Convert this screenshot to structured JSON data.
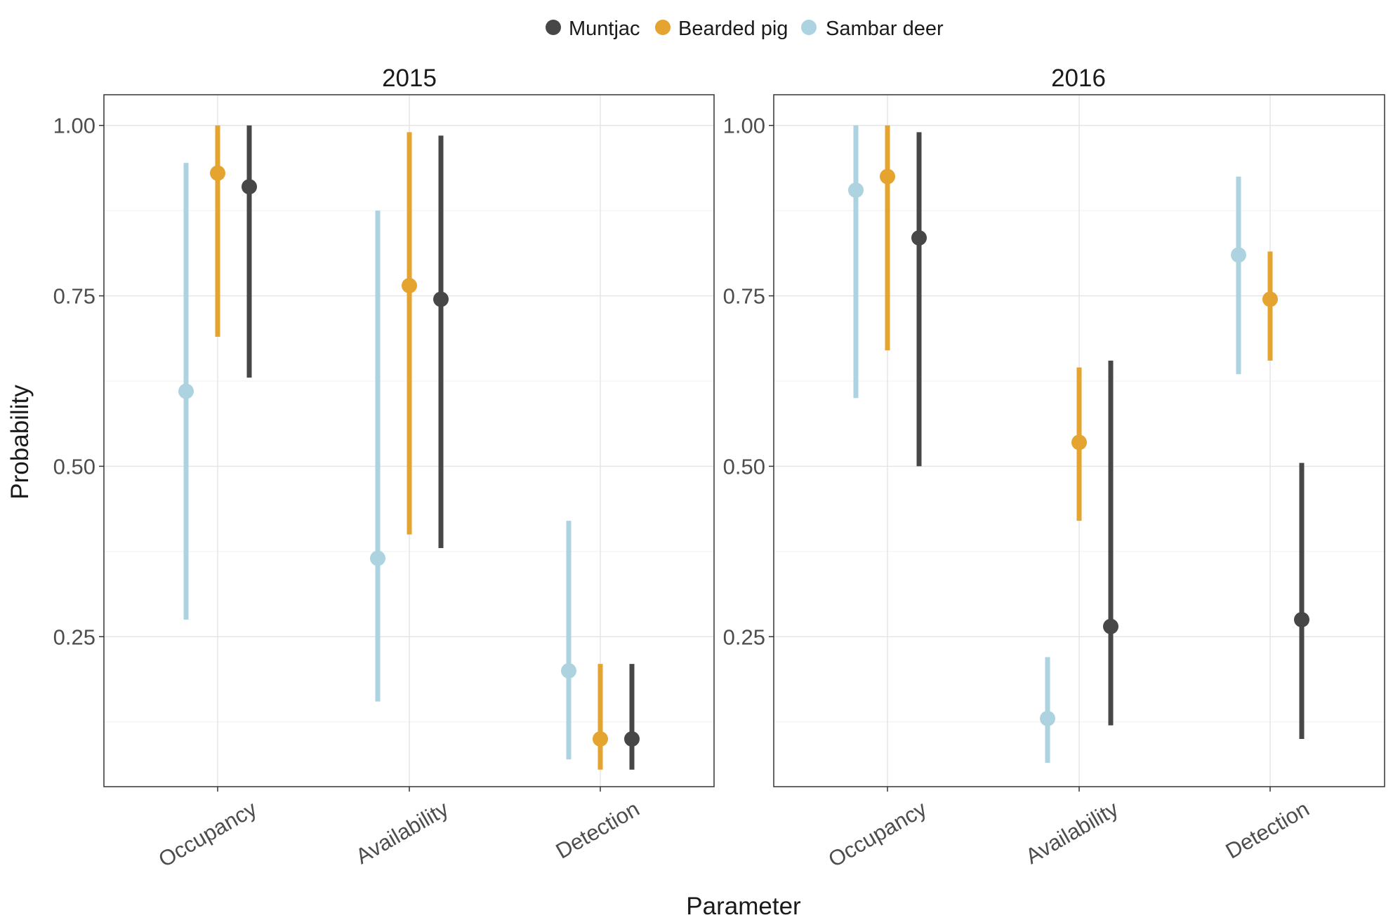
{
  "colors": {
    "Muntjac": "#474747",
    "Bearded pig": "#E5A330",
    "Sambar deer": "#ADD3E1"
  },
  "legend": {
    "position": "top",
    "items": [
      "Muntjac",
      "Bearded pig",
      "Sambar deer"
    ]
  },
  "axis": {
    "xlabel": "Parameter",
    "ylabel": "Probability"
  },
  "chart_data": [
    {
      "type": "pointrange",
      "title": "2015",
      "categories": [
        "Occupancy",
        "Availability",
        "Detection"
      ],
      "ylim": [
        0.03,
        1.045
      ],
      "yticks": [
        0.25,
        0.5,
        0.75,
        1.0
      ],
      "ytick_labels": [
        "0.25",
        "0.50",
        "0.75",
        "1.00"
      ],
      "series": [
        {
          "name": "Sambar deer",
          "points": [
            {
              "category": "Occupancy",
              "mid": 0.61,
              "low": 0.275,
              "high": 0.945
            },
            {
              "category": "Availability",
              "mid": 0.365,
              "low": 0.155,
              "high": 0.875
            },
            {
              "category": "Detection",
              "mid": 0.2,
              "low": 0.07,
              "high": 0.42
            }
          ]
        },
        {
          "name": "Bearded pig",
          "points": [
            {
              "category": "Occupancy",
              "mid": 0.93,
              "low": 0.69,
              "high": 1.0
            },
            {
              "category": "Availability",
              "mid": 0.765,
              "low": 0.4,
              "high": 0.99
            },
            {
              "category": "Detection",
              "mid": 0.1,
              "low": 0.055,
              "high": 0.21
            }
          ]
        },
        {
          "name": "Muntjac",
          "points": [
            {
              "category": "Occupancy",
              "mid": 0.91,
              "low": 0.63,
              "high": 1.0
            },
            {
              "category": "Availability",
              "mid": 0.745,
              "low": 0.38,
              "high": 0.985
            },
            {
              "category": "Detection",
              "mid": 0.1,
              "low": 0.055,
              "high": 0.21
            }
          ]
        }
      ]
    },
    {
      "type": "pointrange",
      "title": "2016",
      "categories": [
        "Occupancy",
        "Availability",
        "Detection"
      ],
      "ylim": [
        0.03,
        1.045
      ],
      "yticks": [
        0.25,
        0.5,
        0.75,
        1.0
      ],
      "ytick_labels": [
        "0.25",
        "0.50",
        "0.75",
        "1.00"
      ],
      "series": [
        {
          "name": "Sambar deer",
          "points": [
            {
              "category": "Occupancy",
              "mid": 0.905,
              "low": 0.6,
              "high": 1.0
            },
            {
              "category": "Availability",
              "mid": 0.13,
              "low": 0.065,
              "high": 0.22
            },
            {
              "category": "Detection",
              "mid": 0.81,
              "low": 0.635,
              "high": 0.925
            }
          ]
        },
        {
          "name": "Bearded pig",
          "points": [
            {
              "category": "Occupancy",
              "mid": 0.925,
              "low": 0.67,
              "high": 1.0
            },
            {
              "category": "Availability",
              "mid": 0.535,
              "low": 0.42,
              "high": 0.645
            },
            {
              "category": "Detection",
              "mid": 0.745,
              "low": 0.655,
              "high": 0.815
            }
          ]
        },
        {
          "name": "Muntjac",
          "points": [
            {
              "category": "Occupancy",
              "mid": 0.835,
              "low": 0.5,
              "high": 0.99
            },
            {
              "category": "Availability",
              "mid": 0.265,
              "low": 0.12,
              "high": 0.655
            },
            {
              "category": "Detection",
              "mid": 0.275,
              "low": 0.1,
              "high": 0.505
            }
          ]
        }
      ]
    }
  ]
}
